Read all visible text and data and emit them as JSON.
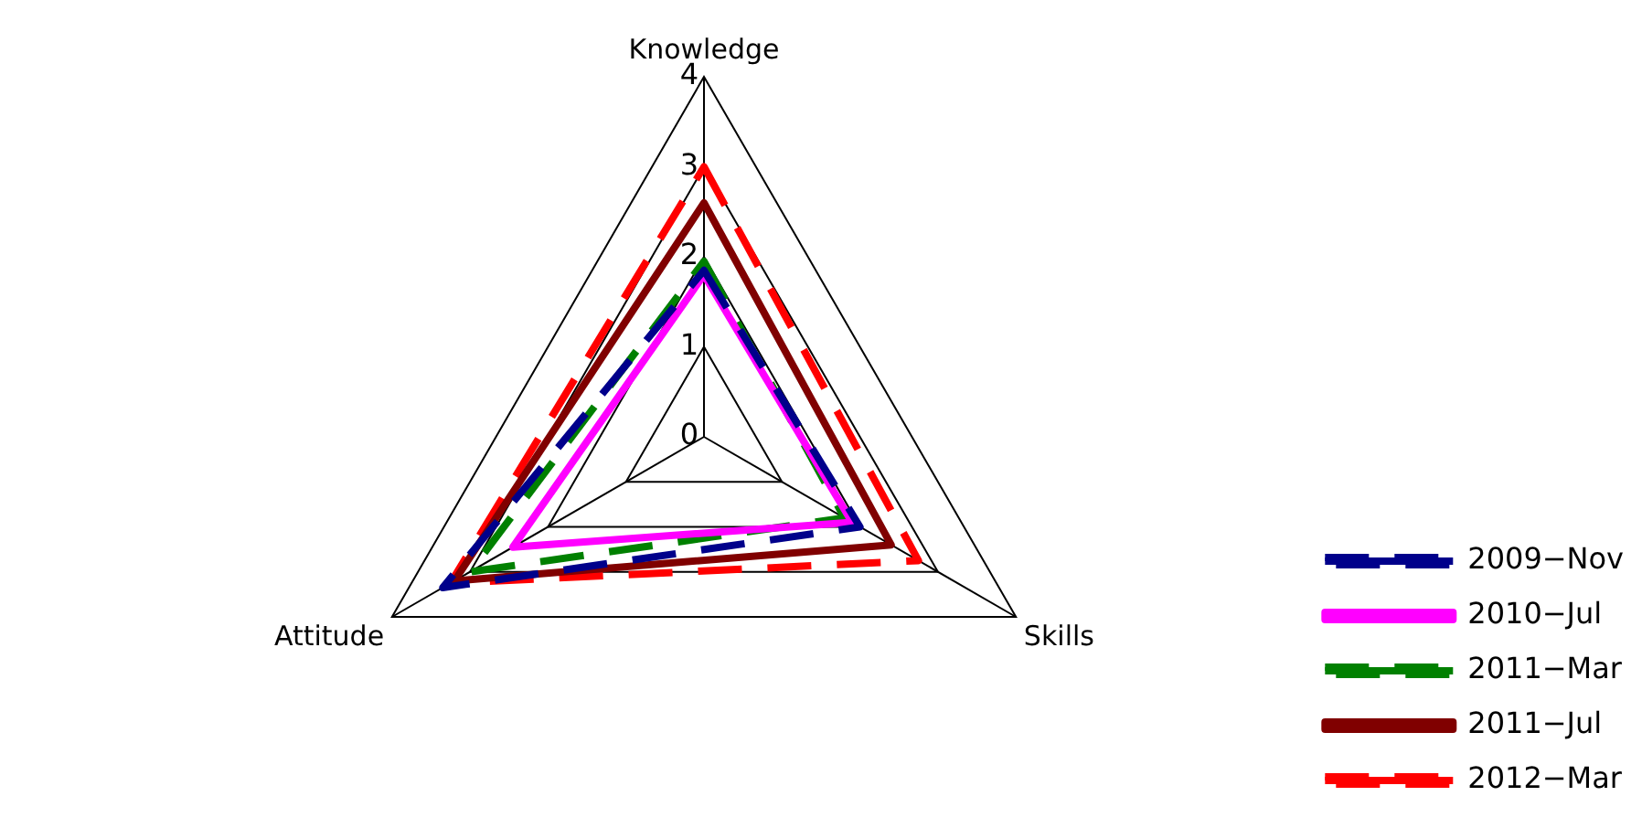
{
  "chart_data": {
    "type": "radar",
    "categories": [
      "Knowledge",
      "Skills",
      "Attitude"
    ],
    "ylim": [
      0,
      4
    ],
    "yticks": [
      0,
      1,
      2,
      3,
      4
    ],
    "legend": "bottom right",
    "marker": "none",
    "grid": true,
    "series": [
      {
        "name": "2009−Nov",
        "color": "#00008b",
        "line_style": "dashed",
        "values": [
          1.85,
          2.0,
          3.35
        ]
      },
      {
        "name": "2010−Jul",
        "color": "#ff00ff",
        "line_style": "solid",
        "values": [
          1.8,
          1.9,
          2.45
        ]
      },
      {
        "name": "2011−Mar",
        "color": "#008000",
        "line_style": "dashed",
        "values": [
          1.95,
          1.8,
          3.0
        ]
      },
      {
        "name": "2011−Jul",
        "color": "#800000",
        "line_style": "solid",
        "values": [
          2.6,
          2.4,
          3.2
        ]
      },
      {
        "name": "2012−Mar",
        "color": "#ff0000",
        "line_style": "dashed",
        "values": [
          3.0,
          2.75,
          3.25
        ]
      }
    ]
  }
}
